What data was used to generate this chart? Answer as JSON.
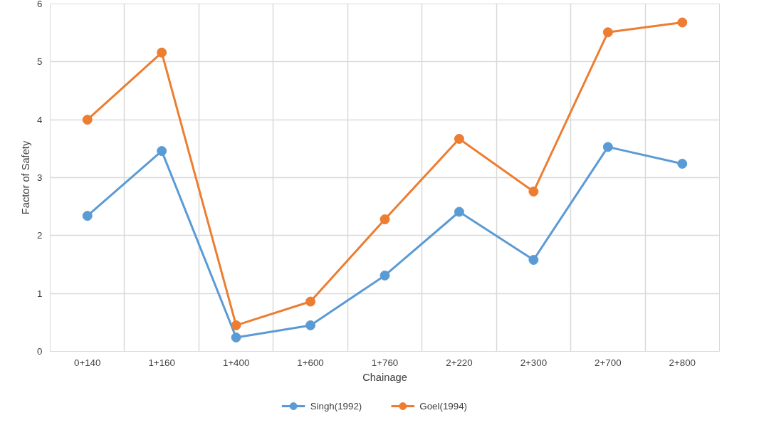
{
  "chart_data": {
    "type": "line",
    "xlabel": "Chainage",
    "ylabel": "Factor of Safety",
    "categories": [
      "0+140",
      "1+160",
      "1+400",
      "1+600",
      "1+760",
      "2+220",
      "2+300",
      "2+700",
      "2+800"
    ],
    "series": [
      {
        "name": "Singh(1992)",
        "color": "#5b9bd5",
        "values": [
          2.34,
          3.46,
          0.24,
          0.45,
          1.31,
          2.41,
          1.58,
          3.53,
          3.24
        ]
      },
      {
        "name": "Goel(1994)",
        "color": "#ed7d31",
        "values": [
          4.0,
          5.16,
          0.45,
          0.86,
          2.28,
          3.67,
          2.76,
          5.51,
          5.68
        ]
      }
    ],
    "ylim": [
      0,
      6
    ],
    "yticks": [
      0,
      1,
      2,
      3,
      4,
      5,
      6
    ],
    "grid": true,
    "legend": "bottom",
    "marker": "circle",
    "line_style": "solid"
  }
}
